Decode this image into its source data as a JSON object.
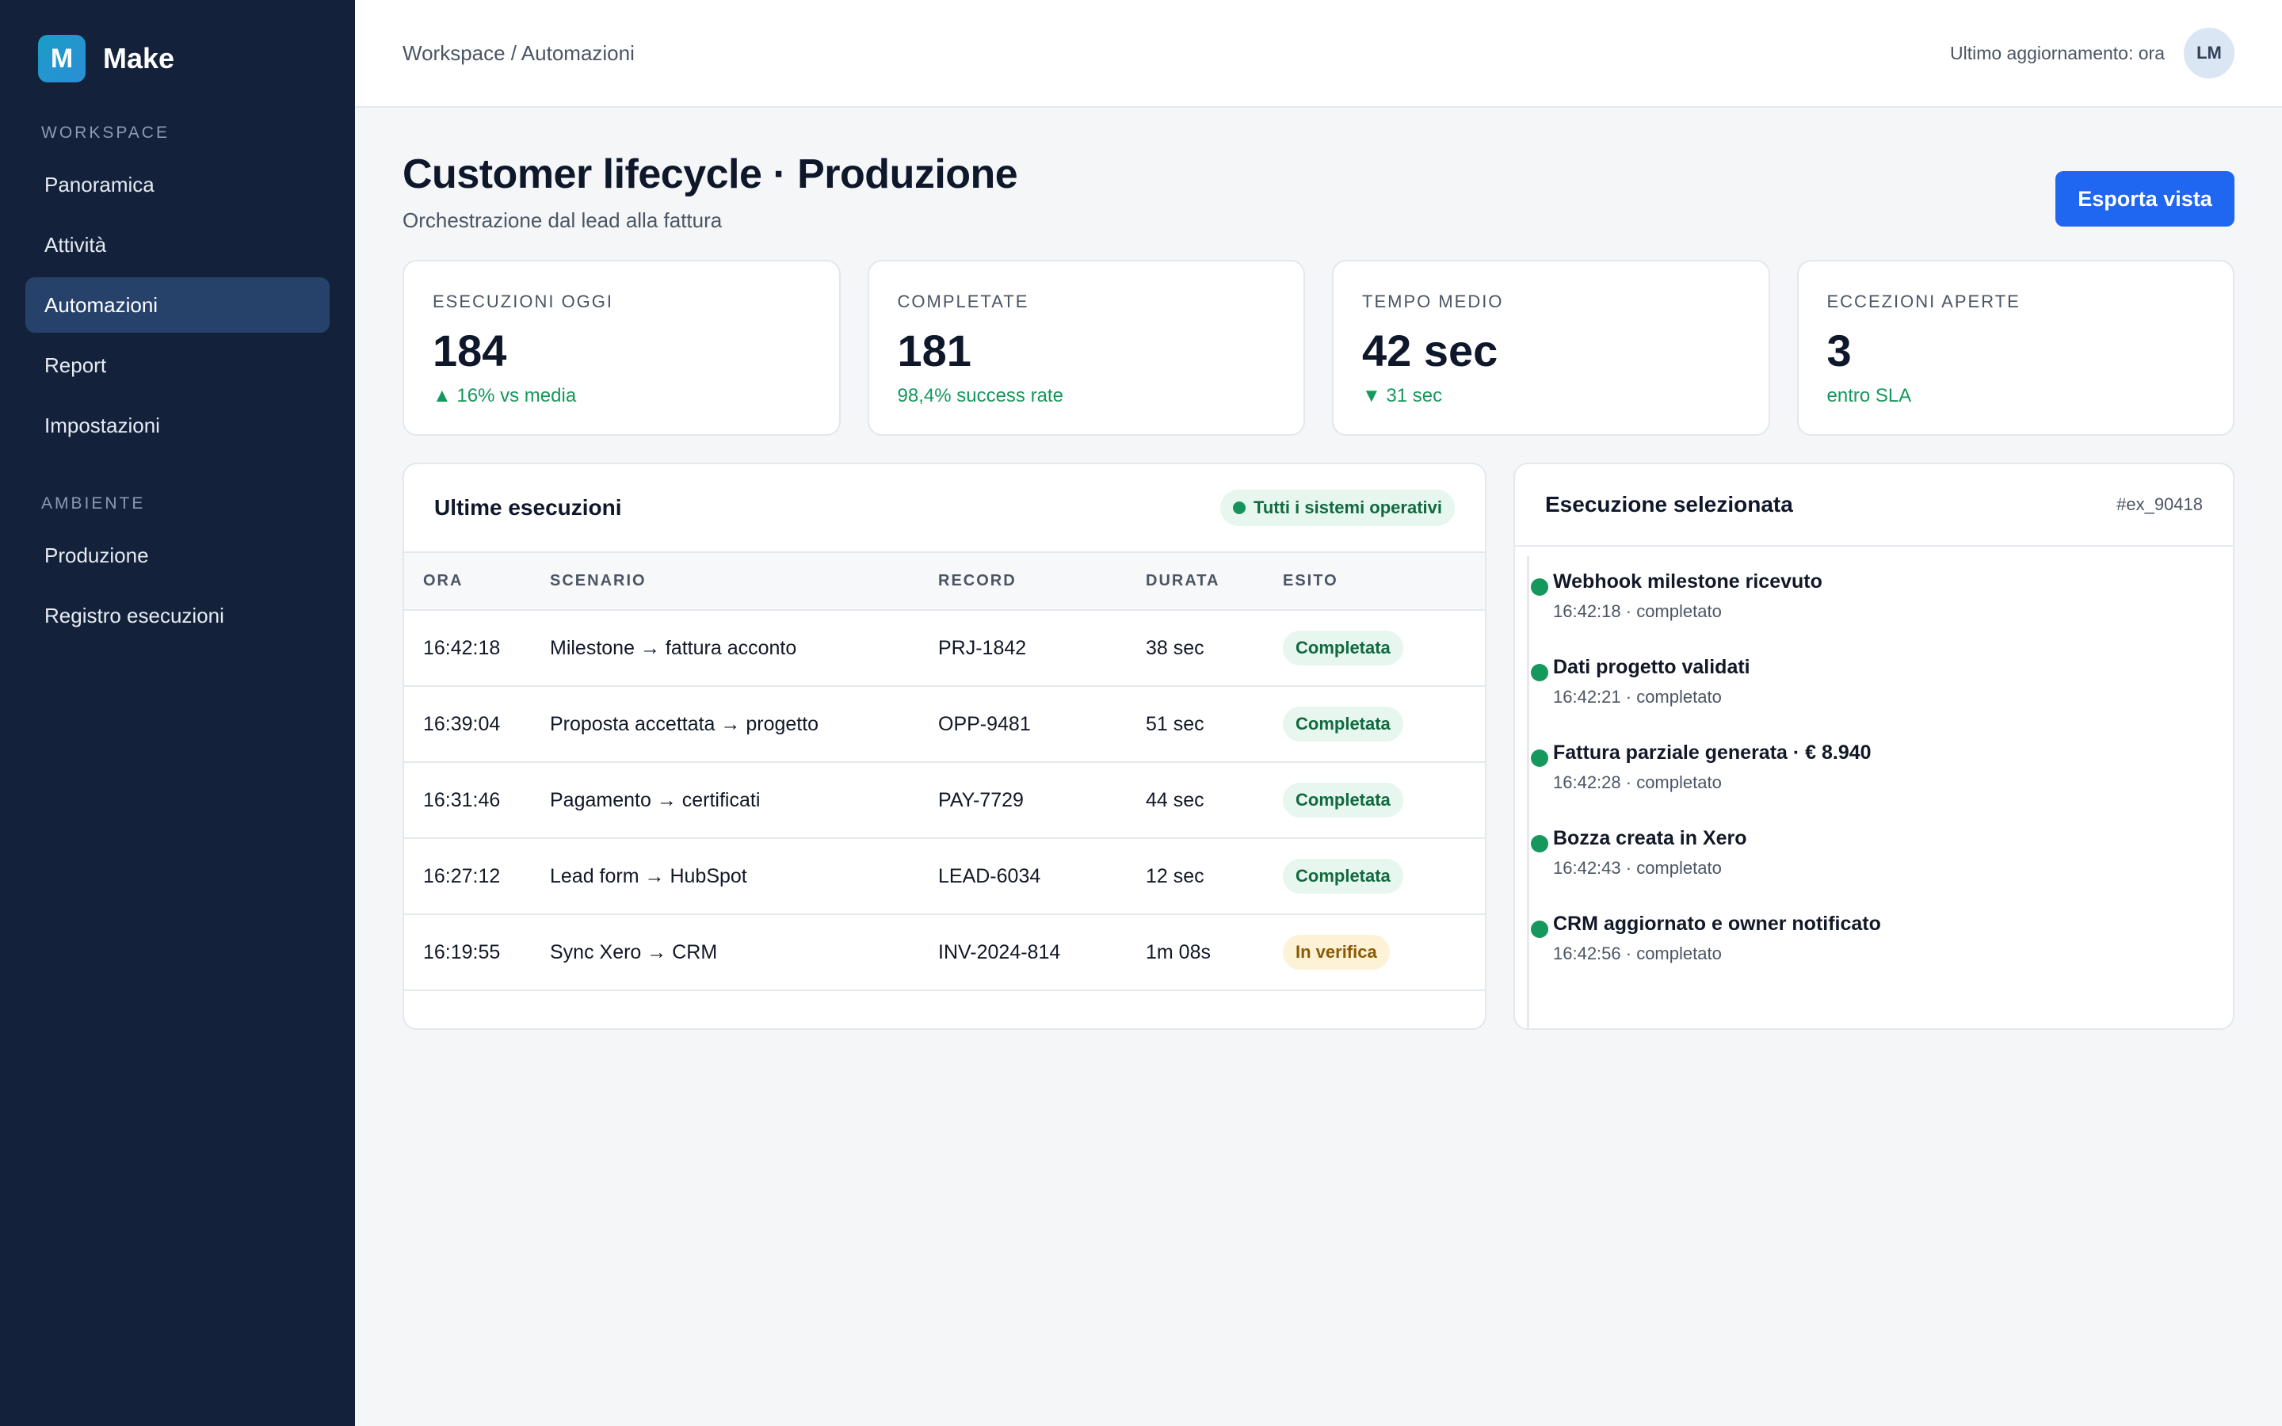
{
  "sidebar": {
    "brand_logo": "M",
    "brand_name": "Make",
    "section_workspace": "WORKSPACE",
    "section_environment": "AMBIENTE",
    "items": [
      {
        "label": "Panoramica"
      },
      {
        "label": "Attività"
      },
      {
        "label": "Automazioni"
      },
      {
        "label": "Report"
      },
      {
        "label": "Impostazioni"
      },
      {
        "label": "Produzione"
      },
      {
        "label": "Registro esecuzioni"
      }
    ]
  },
  "header": {
    "breadcrumb": "Workspace / Automazioni",
    "last_update": "Ultimo aggiornamento: ora",
    "avatar": "LM"
  },
  "page": {
    "title": "Customer lifecycle · Produzione",
    "subtitle": "Orchestrazione dal lead alla fattura",
    "export_label": "Esporta vista"
  },
  "kpis": [
    {
      "label": "ESECUZIONI OGGI",
      "value": "184",
      "note": "▲ 16% vs media"
    },
    {
      "label": "COMPLETATE",
      "value": "181",
      "note": "98,4% success rate"
    },
    {
      "label": "TEMPO MEDIO",
      "value": "42 sec",
      "note": "▼ 31 sec"
    },
    {
      "label": "ECCEZIONI APERTE",
      "value": "3",
      "note": "entro SLA"
    }
  ],
  "executions": {
    "title": "Ultime esecuzioni",
    "status": "Tutti i sistemi operativi",
    "columns": [
      "ORA",
      "SCENARIO",
      "RECORD",
      "DURATA",
      "ESITO"
    ],
    "rows": [
      {
        "time": "16:42:18",
        "scenario": "Milestone → fattura acconto",
        "record": "PRJ-1842",
        "duration": "38 sec",
        "outcome": "Completata"
      },
      {
        "time": "16:39:04",
        "scenario": "Proposta accettata → progetto",
        "record": "OPP-9481",
        "duration": "51 sec",
        "outcome": "Completata"
      },
      {
        "time": "16:31:46",
        "scenario": "Pagamento → certificati",
        "record": "PAY-7729",
        "duration": "44 sec",
        "outcome": "Completata"
      },
      {
        "time": "16:27:12",
        "scenario": "Lead form → HubSpot",
        "record": "LEAD-6034",
        "duration": "12 sec",
        "outcome": "Completata"
      },
      {
        "time": "16:19:55",
        "scenario": "Sync Xero → CRM",
        "record": "INV-2024-814",
        "duration": "1m 08s",
        "outcome": "In verifica"
      }
    ]
  },
  "detail": {
    "title": "Esecuzione selezionata",
    "id": "#ex_90418",
    "steps": [
      {
        "title": "Webhook milestone ricevuto",
        "meta": "16:42:18 · completato"
      },
      {
        "title": "Dati progetto validati",
        "meta": "16:42:21 · completato"
      },
      {
        "title": "Fattura parziale generata · € 8.940",
        "meta": "16:42:28 · completato"
      },
      {
        "title": "Bozza creata in Xero",
        "meta": "16:42:43 · completato"
      },
      {
        "title": "CRM aggiornato e owner notificato",
        "meta": "16:42:56 · completato"
      }
    ]
  }
}
